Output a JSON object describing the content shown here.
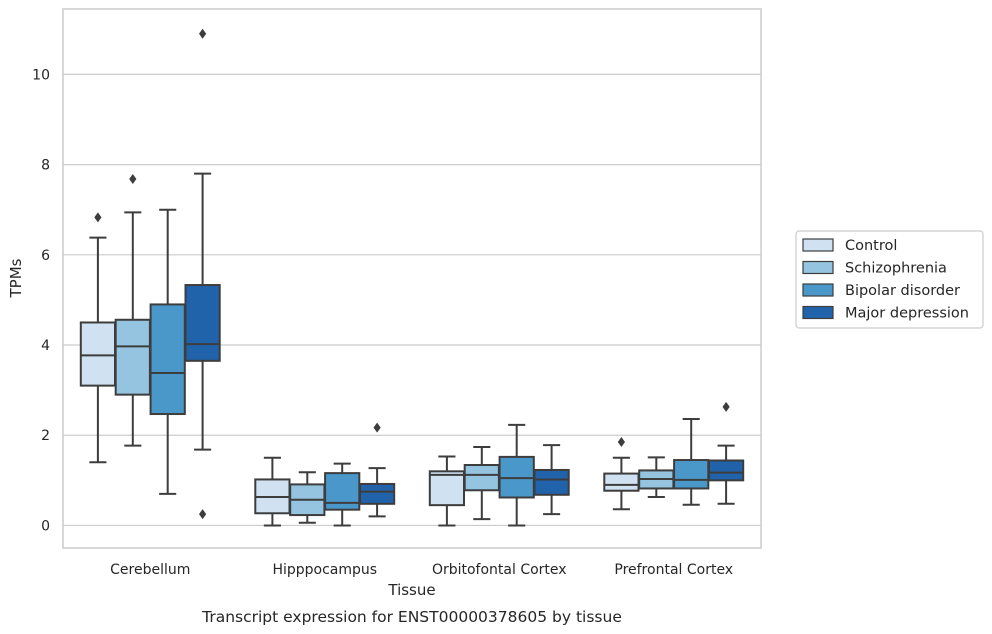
{
  "chart_data": {
    "type": "box",
    "title": "",
    "caption": "Transcript expression for ENST00000378605 by tissue",
    "xlabel": "Tissue",
    "ylabel": "TPMs",
    "ylim": [
      -0.5,
      11.45
    ],
    "yticks": [
      0,
      2,
      4,
      6,
      8,
      10
    ],
    "grid": "horizontal",
    "legend_position": "right",
    "categories": [
      "Cerebellum",
      "Hipppocampus",
      "Orbitofontal Cortex",
      "Prefrontal Cortex"
    ],
    "series": [
      {
        "name": "Control",
        "color": "#d0e1f2",
        "boxes": [
          {
            "whislo": 1.4,
            "q1": 3.1,
            "med": 3.77,
            "q3": 4.5,
            "whishi": 6.38,
            "fliers": [
              6.83
            ]
          },
          {
            "whislo": 0.0,
            "q1": 0.27,
            "med": 0.63,
            "q3": 1.02,
            "whishi": 1.5,
            "fliers": []
          },
          {
            "whislo": 0.0,
            "q1": 0.45,
            "med": 1.12,
            "q3": 1.2,
            "whishi": 1.53,
            "fliers": []
          },
          {
            "whislo": 0.36,
            "q1": 0.77,
            "med": 0.9,
            "q3": 1.15,
            "whishi": 1.5,
            "fliers": [
              1.85
            ]
          }
        ]
      },
      {
        "name": "Schizophrenia",
        "color": "#94c4df",
        "boxes": [
          {
            "whislo": 1.77,
            "q1": 2.9,
            "med": 3.97,
            "q3": 4.56,
            "whishi": 6.94,
            "fliers": [
              7.68
            ]
          },
          {
            "whislo": 0.06,
            "q1": 0.23,
            "med": 0.57,
            "q3": 0.91,
            "whishi": 1.18,
            "fliers": []
          },
          {
            "whislo": 0.14,
            "q1": 0.78,
            "med": 1.12,
            "q3": 1.34,
            "whishi": 1.74,
            "fliers": []
          },
          {
            "whislo": 0.63,
            "q1": 0.82,
            "med": 1.03,
            "q3": 1.22,
            "whishi": 1.51,
            "fliers": []
          }
        ]
      },
      {
        "name": "Bipolar disorder",
        "color": "#4a98c9",
        "boxes": [
          {
            "whislo": 0.7,
            "q1": 2.47,
            "med": 3.38,
            "q3": 4.9,
            "whishi": 7.0,
            "fliers": []
          },
          {
            "whislo": 0.0,
            "q1": 0.35,
            "med": 0.5,
            "q3": 1.16,
            "whishi": 1.37,
            "fliers": []
          },
          {
            "whislo": 0.0,
            "q1": 0.62,
            "med": 1.05,
            "q3": 1.52,
            "whishi": 2.23,
            "fliers": []
          },
          {
            "whislo": 0.46,
            "q1": 0.82,
            "med": 1.01,
            "q3": 1.45,
            "whishi": 2.36,
            "fliers": []
          }
        ]
      },
      {
        "name": "Major depression",
        "color": "#2163aa",
        "boxes": [
          {
            "whislo": 1.68,
            "q1": 3.65,
            "med": 4.02,
            "q3": 5.33,
            "whishi": 7.8,
            "fliers": [
              10.9,
              0.25
            ]
          },
          {
            "whislo": 0.2,
            "q1": 0.48,
            "med": 0.75,
            "q3": 0.92,
            "whishi": 1.27,
            "fliers": [
              2.17
            ]
          },
          {
            "whislo": 0.25,
            "q1": 0.68,
            "med": 1.02,
            "q3": 1.23,
            "whishi": 1.78,
            "fliers": []
          },
          {
            "whislo": 0.48,
            "q1": 1.0,
            "med": 1.17,
            "q3": 1.44,
            "whishi": 1.77,
            "fliers": [
              2.63
            ]
          }
        ]
      }
    ]
  }
}
